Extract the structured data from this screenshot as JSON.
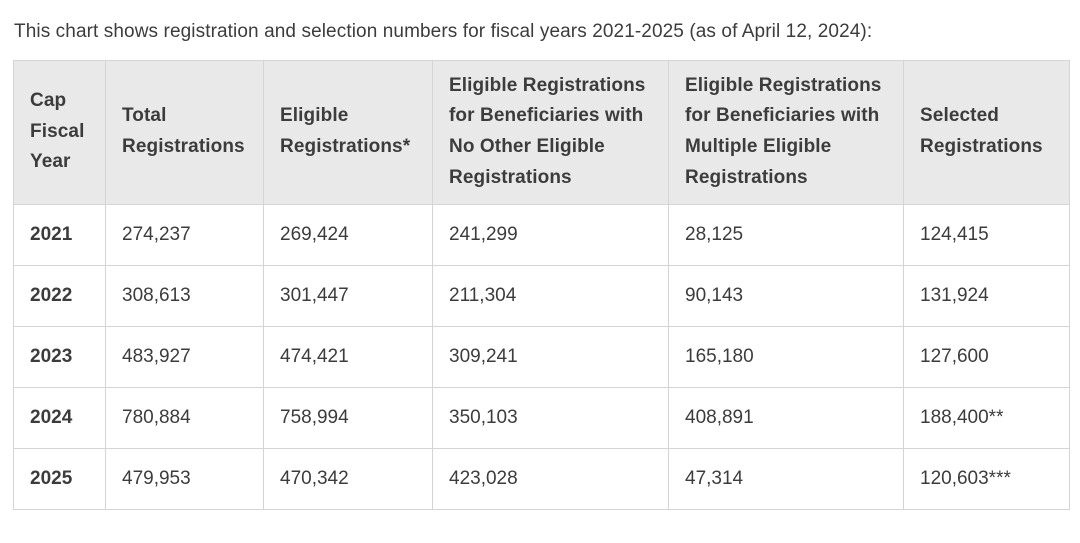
{
  "page": {
    "intro_text": "This chart shows registration and selection numbers for fiscal years 2021-2025 (as of April 12, 2024):"
  },
  "colors": {
    "header_background": "#e9e9e9",
    "table_border": "#d5d5d5",
    "text": "#3c3c3c",
    "row_background": "#ffffff"
  },
  "table": {
    "columns": [
      "Cap Fiscal Year",
      "Total Registrations",
      "Eligible Registrations*",
      "Eligible Registrations for Beneficiaries with No Other Eligible Registrations",
      "Eligible Registrations for Beneficiaries with Multiple Eligible Registrations",
      "Selected Registrations"
    ],
    "rows": [
      {
        "year": "2021",
        "values": [
          "274,237",
          "269,424",
          "241,299",
          "28,125",
          "124,415"
        ]
      },
      {
        "year": "2022",
        "values": [
          "308,613",
          "301,447",
          "211,304",
          "90,143",
          "131,924"
        ]
      },
      {
        "year": "2023",
        "values": [
          "483,927",
          "474,421",
          "309,241",
          "165,180",
          "127,600"
        ]
      },
      {
        "year": "2024",
        "values": [
          "780,884",
          "758,994",
          "350,103",
          "408,891",
          "188,400**"
        ]
      },
      {
        "year": "2025",
        "values": [
          "479,953",
          "470,342",
          "423,028",
          "47,314",
          "120,603***"
        ]
      }
    ]
  },
  "chart_data": {
    "type": "table",
    "title": "This chart shows registration and selection numbers for fiscal years 2021-2025 (as of April 12, 2024):",
    "columns": [
      "Cap Fiscal Year",
      "Total Registrations",
      "Eligible Registrations*",
      "Eligible Registrations for Beneficiaries with No Other Eligible Registrations",
      "Eligible Registrations for Beneficiaries with Multiple Eligible Registrations",
      "Selected Registrations"
    ],
    "rows": [
      [
        "2021",
        274237,
        269424,
        241299,
        28125,
        124415
      ],
      [
        "2022",
        308613,
        301447,
        211304,
        90143,
        131924
      ],
      [
        "2023",
        483927,
        474421,
        309241,
        165180,
        127600
      ],
      [
        "2024",
        780884,
        758994,
        350103,
        408891,
        188400
      ],
      [
        "2025",
        479953,
        470342,
        423028,
        47314,
        120603
      ]
    ],
    "footnote_markers": {
      "2024_selected": "**",
      "2025_selected": "***",
      "eligible_registrations": "*"
    }
  }
}
